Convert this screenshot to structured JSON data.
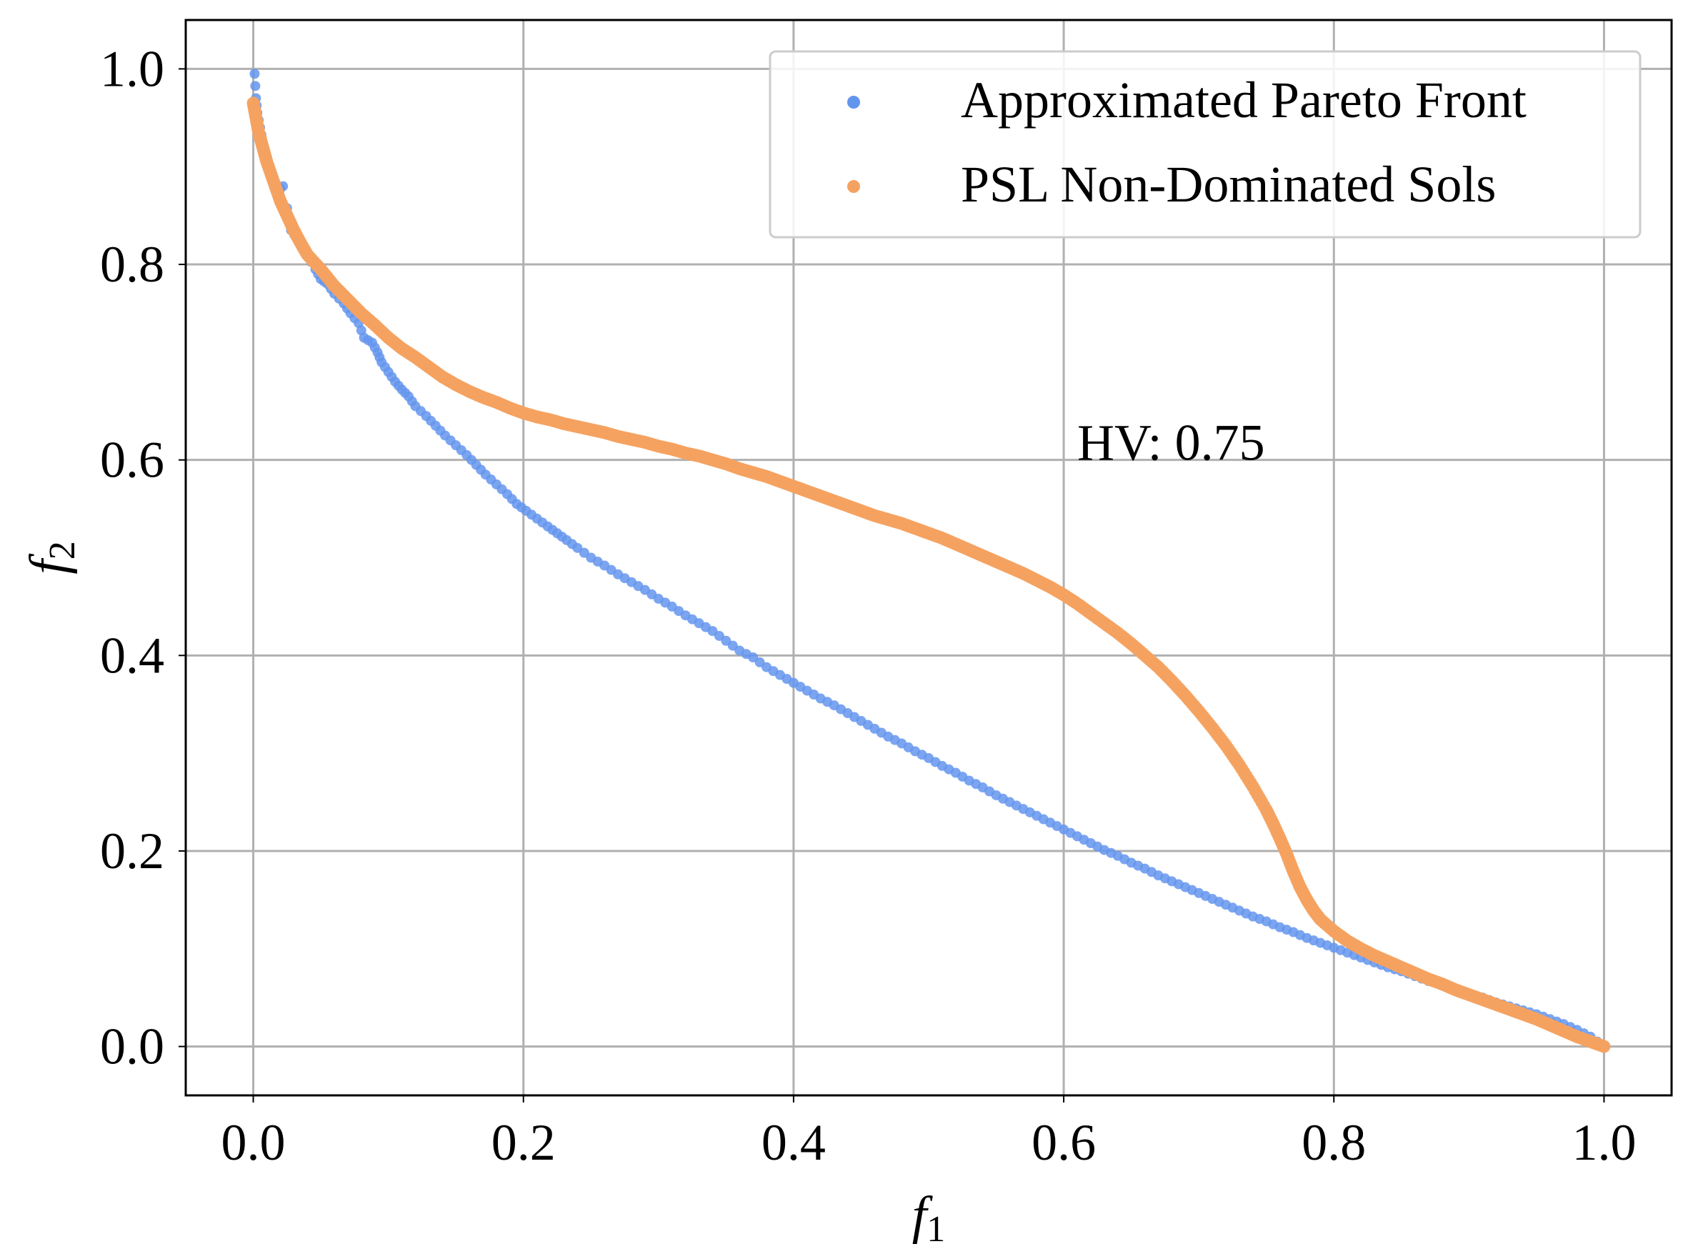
{
  "chart_data": {
    "type": "scatter",
    "xlabel": "f",
    "xlabel_sub": "1",
    "ylabel": "f",
    "ylabel_sub": "2",
    "xlim": [
      -0.05,
      1.05
    ],
    "ylim": [
      -0.05,
      1.05
    ],
    "xticks": [
      0.0,
      0.2,
      0.4,
      0.6,
      0.8,
      1.0
    ],
    "xtick_labels": [
      "0.0",
      "0.2",
      "0.4",
      "0.6",
      "0.8",
      "1.0"
    ],
    "yticks": [
      0.0,
      0.2,
      0.4,
      0.6,
      0.8,
      1.0
    ],
    "ytick_labels": [
      "0.0",
      "0.2",
      "0.4",
      "0.6",
      "0.8",
      "1.0"
    ],
    "grid": true,
    "legend_position": "top-right",
    "annotation": {
      "text": "HV: 0.75",
      "x": 0.61,
      "y": 0.6
    },
    "series": [
      {
        "name": "Approximated Pareto Front",
        "color": "#6495ED",
        "points": [
          [
            0.001,
            0.995
          ],
          [
            0.002,
            0.97
          ],
          [
            0.003,
            0.955
          ],
          [
            0.005,
            0.94
          ],
          [
            0.007,
            0.925
          ],
          [
            0.01,
            0.91
          ],
          [
            0.013,
            0.895
          ],
          [
            0.018,
            0.875
          ],
          [
            0.022,
            0.88
          ],
          [
            0.028,
            0.835
          ],
          [
            0.033,
            0.825
          ],
          [
            0.04,
            0.81
          ],
          [
            0.046,
            0.795
          ],
          [
            0.05,
            0.785
          ],
          [
            0.055,
            0.78
          ],
          [
            0.06,
            0.77
          ],
          [
            0.067,
            0.76
          ],
          [
            0.072,
            0.75
          ],
          [
            0.078,
            0.74
          ],
          [
            0.082,
            0.725
          ],
          [
            0.088,
            0.72
          ],
          [
            0.092,
            0.71
          ],
          [
            0.095,
            0.7
          ],
          [
            0.1,
            0.69
          ],
          [
            0.105,
            0.68
          ],
          [
            0.11,
            0.672
          ],
          [
            0.115,
            0.665
          ],
          [
            0.12,
            0.655
          ],
          [
            0.128,
            0.645
          ],
          [
            0.135,
            0.635
          ],
          [
            0.142,
            0.625
          ],
          [
            0.15,
            0.615
          ],
          [
            0.158,
            0.605
          ],
          [
            0.165,
            0.595
          ],
          [
            0.172,
            0.585
          ],
          [
            0.18,
            0.575
          ],
          [
            0.188,
            0.565
          ],
          [
            0.195,
            0.555
          ],
          [
            0.202,
            0.548
          ],
          [
            0.21,
            0.54
          ],
          [
            0.218,
            0.532
          ],
          [
            0.225,
            0.525
          ],
          [
            0.232,
            0.518
          ],
          [
            0.24,
            0.51
          ],
          [
            0.25,
            0.5
          ],
          [
            0.26,
            0.492
          ],
          [
            0.27,
            0.483
          ],
          [
            0.28,
            0.475
          ],
          [
            0.29,
            0.467
          ],
          [
            0.3,
            0.458
          ],
          [
            0.31,
            0.45
          ],
          [
            0.32,
            0.441
          ],
          [
            0.33,
            0.433
          ],
          [
            0.34,
            0.425
          ],
          [
            0.35,
            0.415
          ],
          [
            0.36,
            0.405
          ],
          [
            0.37,
            0.398
          ],
          [
            0.38,
            0.388
          ],
          [
            0.39,
            0.38
          ],
          [
            0.4,
            0.372
          ],
          [
            0.41,
            0.364
          ],
          [
            0.42,
            0.356
          ],
          [
            0.43,
            0.349
          ],
          [
            0.44,
            0.341
          ],
          [
            0.45,
            0.333
          ],
          [
            0.46,
            0.325
          ],
          [
            0.47,
            0.317
          ],
          [
            0.48,
            0.31
          ],
          [
            0.49,
            0.302
          ],
          [
            0.5,
            0.295
          ],
          [
            0.51,
            0.287
          ],
          [
            0.52,
            0.28
          ],
          [
            0.53,
            0.272
          ],
          [
            0.54,
            0.265
          ],
          [
            0.55,
            0.257
          ],
          [
            0.56,
            0.25
          ],
          [
            0.57,
            0.243
          ],
          [
            0.58,
            0.236
          ],
          [
            0.59,
            0.229
          ],
          [
            0.6,
            0.222
          ],
          [
            0.61,
            0.215
          ],
          [
            0.62,
            0.208
          ],
          [
            0.63,
            0.201
          ],
          [
            0.64,
            0.195
          ],
          [
            0.65,
            0.188
          ],
          [
            0.66,
            0.182
          ],
          [
            0.67,
            0.175
          ],
          [
            0.68,
            0.169
          ],
          [
            0.69,
            0.163
          ],
          [
            0.7,
            0.157
          ],
          [
            0.71,
            0.151
          ],
          [
            0.72,
            0.145
          ],
          [
            0.73,
            0.139
          ],
          [
            0.74,
            0.133
          ],
          [
            0.75,
            0.128
          ],
          [
            0.76,
            0.122
          ],
          [
            0.77,
            0.117
          ],
          [
            0.78,
            0.111
          ],
          [
            0.79,
            0.106
          ],
          [
            0.8,
            0.101
          ],
          [
            0.81,
            0.096
          ],
          [
            0.82,
            0.091
          ],
          [
            0.83,
            0.086
          ],
          [
            0.84,
            0.081
          ],
          [
            0.85,
            0.077
          ],
          [
            0.86,
            0.072
          ],
          [
            0.87,
            0.067
          ],
          [
            0.88,
            0.063
          ],
          [
            0.89,
            0.058
          ],
          [
            0.9,
            0.054
          ],
          [
            0.91,
            0.05
          ],
          [
            0.92,
            0.045
          ],
          [
            0.93,
            0.041
          ],
          [
            0.94,
            0.037
          ],
          [
            0.95,
            0.033
          ],
          [
            0.96,
            0.028
          ],
          [
            0.97,
            0.023
          ],
          [
            0.98,
            0.017
          ],
          [
            0.99,
            0.01
          ],
          [
            1.0,
            0.0
          ]
        ]
      },
      {
        "name": "PSL Non-Dominated Sols",
        "color": "#F4A261",
        "points": [
          [
            0.0,
            0.965
          ],
          [
            0.002,
            0.95
          ],
          [
            0.004,
            0.935
          ],
          [
            0.007,
            0.92
          ],
          [
            0.01,
            0.905
          ],
          [
            0.015,
            0.885
          ],
          [
            0.02,
            0.865
          ],
          [
            0.025,
            0.85
          ],
          [
            0.03,
            0.835
          ],
          [
            0.035,
            0.822
          ],
          [
            0.04,
            0.81
          ],
          [
            0.05,
            0.795
          ],
          [
            0.06,
            0.778
          ],
          [
            0.07,
            0.764
          ],
          [
            0.08,
            0.75
          ],
          [
            0.09,
            0.738
          ],
          [
            0.1,
            0.725
          ],
          [
            0.11,
            0.714
          ],
          [
            0.12,
            0.705
          ],
          [
            0.13,
            0.695
          ],
          [
            0.14,
            0.685
          ],
          [
            0.15,
            0.677
          ],
          [
            0.16,
            0.67
          ],
          [
            0.17,
            0.664
          ],
          [
            0.18,
            0.659
          ],
          [
            0.19,
            0.653
          ],
          [
            0.2,
            0.648
          ],
          [
            0.21,
            0.644
          ],
          [
            0.22,
            0.641
          ],
          [
            0.23,
            0.637
          ],
          [
            0.24,
            0.634
          ],
          [
            0.25,
            0.631
          ],
          [
            0.26,
            0.628
          ],
          [
            0.27,
            0.624
          ],
          [
            0.28,
            0.621
          ],
          [
            0.29,
            0.618
          ],
          [
            0.3,
            0.614
          ],
          [
            0.31,
            0.611
          ],
          [
            0.32,
            0.607
          ],
          [
            0.33,
            0.604
          ],
          [
            0.34,
            0.6
          ],
          [
            0.35,
            0.596
          ],
          [
            0.36,
            0.591
          ],
          [
            0.37,
            0.587
          ],
          [
            0.38,
            0.583
          ],
          [
            0.39,
            0.578
          ],
          [
            0.4,
            0.573
          ],
          [
            0.41,
            0.568
          ],
          [
            0.42,
            0.563
          ],
          [
            0.43,
            0.558
          ],
          [
            0.44,
            0.553
          ],
          [
            0.45,
            0.548
          ],
          [
            0.46,
            0.543
          ],
          [
            0.47,
            0.539
          ],
          [
            0.48,
            0.535
          ],
          [
            0.49,
            0.53
          ],
          [
            0.5,
            0.525
          ],
          [
            0.51,
            0.52
          ],
          [
            0.52,
            0.514
          ],
          [
            0.53,
            0.508
          ],
          [
            0.54,
            0.502
          ],
          [
            0.55,
            0.496
          ],
          [
            0.56,
            0.49
          ],
          [
            0.57,
            0.484
          ],
          [
            0.58,
            0.477
          ],
          [
            0.59,
            0.47
          ],
          [
            0.6,
            0.462
          ],
          [
            0.61,
            0.453
          ],
          [
            0.62,
            0.443
          ],
          [
            0.63,
            0.433
          ],
          [
            0.64,
            0.423
          ],
          [
            0.65,
            0.412
          ],
          [
            0.66,
            0.4
          ],
          [
            0.67,
            0.388
          ],
          [
            0.68,
            0.374
          ],
          [
            0.69,
            0.359
          ],
          [
            0.7,
            0.343
          ],
          [
            0.71,
            0.326
          ],
          [
            0.72,
            0.308
          ],
          [
            0.73,
            0.288
          ],
          [
            0.74,
            0.266
          ],
          [
            0.75,
            0.242
          ],
          [
            0.755,
            0.228
          ],
          [
            0.76,
            0.213
          ],
          [
            0.765,
            0.197
          ],
          [
            0.77,
            0.179
          ],
          [
            0.775,
            0.163
          ],
          [
            0.78,
            0.15
          ],
          [
            0.785,
            0.139
          ],
          [
            0.79,
            0.13
          ],
          [
            0.8,
            0.118
          ],
          [
            0.81,
            0.108
          ],
          [
            0.82,
            0.1
          ],
          [
            0.83,
            0.093
          ],
          [
            0.84,
            0.087
          ],
          [
            0.85,
            0.081
          ],
          [
            0.86,
            0.075
          ],
          [
            0.87,
            0.069
          ],
          [
            0.88,
            0.064
          ],
          [
            0.89,
            0.058
          ],
          [
            0.9,
            0.053
          ],
          [
            0.91,
            0.048
          ],
          [
            0.92,
            0.043
          ],
          [
            0.93,
            0.038
          ],
          [
            0.94,
            0.033
          ],
          [
            0.95,
            0.028
          ],
          [
            0.96,
            0.022
          ],
          [
            0.97,
            0.016
          ],
          [
            0.98,
            0.01
          ],
          [
            0.99,
            0.005
          ],
          [
            1.0,
            0.0
          ]
        ]
      }
    ]
  }
}
